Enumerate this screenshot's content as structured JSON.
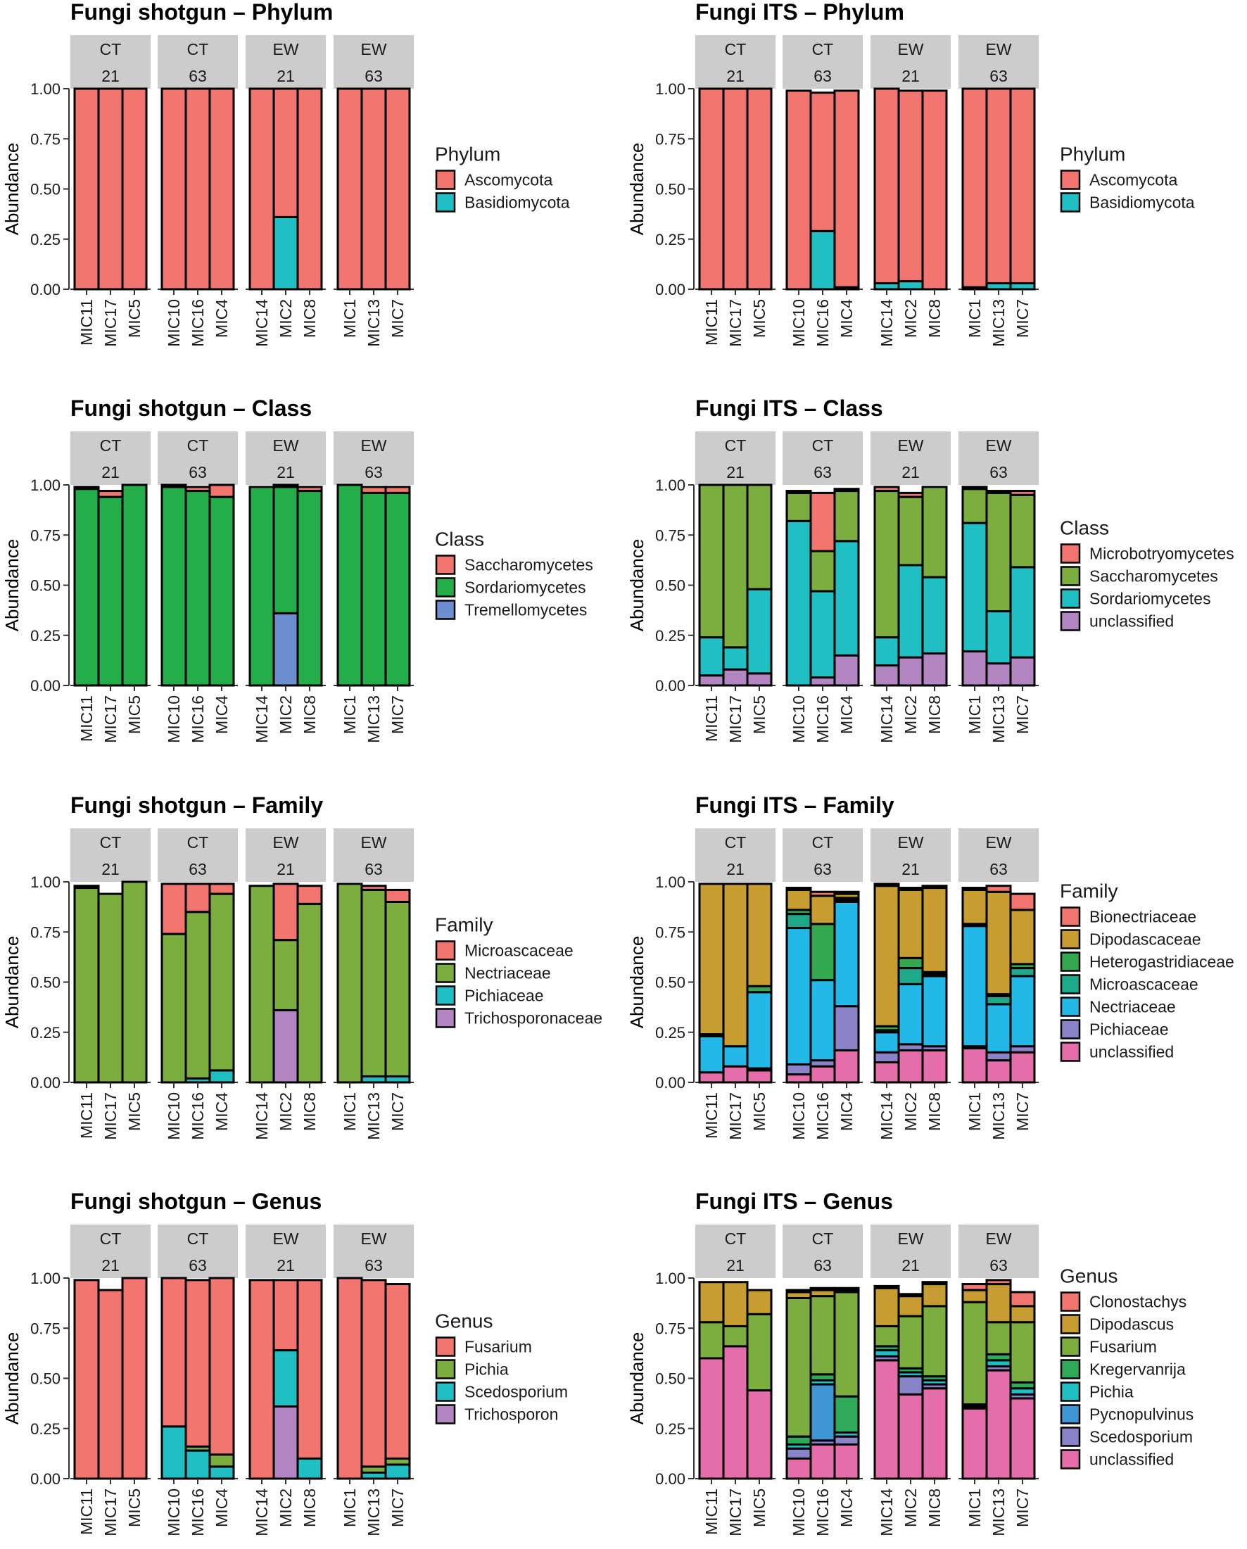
{
  "figure": {
    "facet_rows": [
      "CT",
      "CT",
      "EW",
      "EW"
    ],
    "facet_cols": [
      "21",
      "63",
      "21",
      "63"
    ],
    "groups": [
      [
        "MIC11",
        "MIC17",
        "MIC5"
      ],
      [
        "MIC10",
        "MIC16",
        "MIC4"
      ],
      [
        "MIC14",
        "MIC2",
        "MIC8"
      ],
      [
        "MIC1",
        "MIC13",
        "MIC7"
      ]
    ],
    "y_label": "Abundance",
    "y_ticks": [
      "0.00",
      "0.25",
      "0.50",
      "0.75",
      "1.00"
    ]
  },
  "chart_data": [
    {
      "type": "bar",
      "stacked": true,
      "title": "Fungi shotgun – Phylum",
      "ylabel": "Abundance",
      "ylim": [
        0,
        1
      ],
      "legend_title": "Phylum",
      "categories": [
        "MIC11",
        "MIC17",
        "MIC5",
        "MIC10",
        "MIC16",
        "MIC4",
        "MIC14",
        "MIC2",
        "MIC8",
        "MIC1",
        "MIC13",
        "MIC7"
      ],
      "series": [
        {
          "name": "Basidiomycota",
          "color": "#1fbfc4",
          "values": [
            0,
            0,
            0,
            0,
            0,
            0,
            0,
            0.36,
            0,
            0,
            0,
            0
          ]
        },
        {
          "name": "Ascomycota",
          "color": "#f2756f",
          "values": [
            1,
            1,
            1,
            1,
            1,
            1,
            1,
            0.64,
            1,
            1,
            1,
            1
          ]
        }
      ],
      "legend": [
        "Ascomycota",
        "Basidiomycota"
      ]
    },
    {
      "type": "bar",
      "stacked": true,
      "title": "Fungi ITS – Phylum",
      "ylabel": "Abundance",
      "ylim": [
        0,
        1
      ],
      "legend_title": "Phylum",
      "categories": [
        "MIC11",
        "MIC17",
        "MIC5",
        "MIC10",
        "MIC16",
        "MIC4",
        "MIC14",
        "MIC2",
        "MIC8",
        "MIC1",
        "MIC13",
        "MIC7"
      ],
      "series": [
        {
          "name": "Basidiomycota",
          "color": "#1fbfc4",
          "values": [
            0,
            0,
            0,
            0,
            0.29,
            0.01,
            0.03,
            0.04,
            0,
            0.01,
            0.03,
            0.03
          ]
        },
        {
          "name": "Ascomycota",
          "color": "#f2756f",
          "values": [
            1,
            1,
            1,
            0.99,
            0.69,
            0.98,
            0.97,
            0.95,
            0.99,
            0.99,
            0.97,
            0.97
          ]
        }
      ],
      "legend": [
        "Ascomycota",
        "Basidiomycota"
      ]
    },
    {
      "type": "bar",
      "stacked": true,
      "title": "Fungi shotgun – Class",
      "ylabel": "Abundance",
      "ylim": [
        0,
        1
      ],
      "legend_title": "Class",
      "categories": [
        "MIC11",
        "MIC17",
        "MIC5",
        "MIC10",
        "MIC16",
        "MIC4",
        "MIC14",
        "MIC2",
        "MIC8",
        "MIC1",
        "MIC13",
        "MIC7"
      ],
      "series": [
        {
          "name": "Tremellomycetes",
          "color": "#6d8fd0",
          "values": [
            0,
            0,
            0,
            0,
            0,
            0,
            0,
            0.36,
            0,
            0,
            0,
            0
          ]
        },
        {
          "name": "Sordariomycetes",
          "color": "#24ae4a",
          "values": [
            0.98,
            0.94,
            1,
            0.99,
            0.97,
            0.94,
            0.99,
            0.63,
            0.97,
            1,
            0.96,
            0.96
          ]
        },
        {
          "name": "Saccharomycetes",
          "color": "#f2756f",
          "values": [
            0.01,
            0.03,
            0,
            0.01,
            0.02,
            0.06,
            0,
            0.01,
            0.02,
            0,
            0.03,
            0.03
          ]
        }
      ],
      "legend": [
        "Saccharomycetes",
        "Sordariomycetes",
        "Tremellomycetes"
      ]
    },
    {
      "type": "bar",
      "stacked": true,
      "title": "Fungi ITS – Class",
      "ylabel": "Abundance",
      "ylim": [
        0,
        1
      ],
      "legend_title": "Class",
      "categories": [
        "MIC11",
        "MIC17",
        "MIC5",
        "MIC10",
        "MIC16",
        "MIC4",
        "MIC14",
        "MIC2",
        "MIC8",
        "MIC1",
        "MIC13",
        "MIC7"
      ],
      "series": [
        {
          "name": "unclassified",
          "color": "#b386c2",
          "values": [
            0.05,
            0.08,
            0.06,
            0,
            0.04,
            0.15,
            0.1,
            0.14,
            0.16,
            0.17,
            0.11,
            0.14
          ]
        },
        {
          "name": "Sordariomycetes",
          "color": "#1fbfc4",
          "values": [
            0.19,
            0.11,
            0.42,
            0.82,
            0.43,
            0.57,
            0.14,
            0.46,
            0.38,
            0.64,
            0.26,
            0.45
          ]
        },
        {
          "name": "Saccharomycetes",
          "color": "#7cae3f",
          "values": [
            0.76,
            0.81,
            0.52,
            0.14,
            0.2,
            0.25,
            0.73,
            0.34,
            0.45,
            0.17,
            0.59,
            0.36
          ]
        },
        {
          "name": "Microbotryomycetes",
          "color": "#f2756f",
          "values": [
            0,
            0,
            0,
            0.01,
            0.29,
            0.01,
            0.02,
            0.02,
            0,
            0.01,
            0.01,
            0.02
          ]
        }
      ],
      "legend": [
        "Microbotryomycetes",
        "Saccharomycetes",
        "Sordariomycetes",
        "unclassified"
      ]
    },
    {
      "type": "bar",
      "stacked": true,
      "title": "Fungi shotgun – Family",
      "ylabel": "Abundance",
      "ylim": [
        0,
        1
      ],
      "legend_title": "Family",
      "categories": [
        "MIC11",
        "MIC17",
        "MIC5",
        "MIC10",
        "MIC16",
        "MIC4",
        "MIC14",
        "MIC2",
        "MIC8",
        "MIC1",
        "MIC13",
        "MIC7"
      ],
      "series": [
        {
          "name": "Trichosporonaceae",
          "color": "#b386c2",
          "values": [
            0,
            0,
            0,
            0,
            0,
            0,
            0,
            0.36,
            0,
            0,
            0,
            0
          ]
        },
        {
          "name": "Pichiaceae",
          "color": "#1fbfc4",
          "values": [
            0,
            0,
            0,
            0,
            0.02,
            0.06,
            0,
            0,
            0,
            0,
            0.03,
            0.03
          ]
        },
        {
          "name": "Nectriaceae",
          "color": "#7cae3f",
          "values": [
            0.97,
            0.94,
            1,
            0.74,
            0.83,
            0.88,
            0.98,
            0.35,
            0.89,
            0.99,
            0.93,
            0.87
          ]
        },
        {
          "name": "Microascaceae",
          "color": "#f2756f",
          "values": [
            0.01,
            0,
            0,
            0.25,
            0.14,
            0.05,
            0,
            0.28,
            0.09,
            0,
            0.02,
            0.06
          ]
        }
      ],
      "legend": [
        "Microascaceae",
        "Nectriaceae",
        "Pichiaceae",
        "Trichosporonaceae"
      ]
    },
    {
      "type": "bar",
      "stacked": true,
      "title": "Fungi ITS – Family",
      "ylabel": "Abundance",
      "ylim": [
        0,
        1
      ],
      "legend_title": "Family",
      "categories": [
        "MIC11",
        "MIC17",
        "MIC5",
        "MIC10",
        "MIC16",
        "MIC4",
        "MIC14",
        "MIC2",
        "MIC8",
        "MIC1",
        "MIC13",
        "MIC7"
      ],
      "series": [
        {
          "name": "unclassified",
          "color": "#e56da9",
          "values": [
            0.05,
            0.08,
            0.06,
            0.04,
            0.08,
            0.16,
            0.1,
            0.16,
            0.16,
            0.17,
            0.11,
            0.15
          ]
        },
        {
          "name": "Pichiaceae",
          "color": "#8b83c9",
          "values": [
            0,
            0,
            0.01,
            0.05,
            0.03,
            0.22,
            0.05,
            0.03,
            0.02,
            0.01,
            0.04,
            0.03
          ]
        },
        {
          "name": "Nectriaceae",
          "color": "#22b8e8",
          "values": [
            0.18,
            0.1,
            0.38,
            0.68,
            0.4,
            0.52,
            0.1,
            0.3,
            0.35,
            0.6,
            0.24,
            0.35
          ]
        },
        {
          "name": "Microascaceae",
          "color": "#1ea98a",
          "values": [
            0,
            0,
            0,
            0.07,
            0,
            0.01,
            0.01,
            0.08,
            0.01,
            0,
            0.04,
            0.04
          ]
        },
        {
          "name": "Heterogastridiaceae",
          "color": "#33a84e",
          "values": [
            0.01,
            0,
            0.03,
            0.02,
            0.28,
            0.01,
            0.02,
            0.05,
            0.01,
            0.01,
            0.01,
            0.02
          ]
        },
        {
          "name": "Dipodascaceae",
          "color": "#c79c30",
          "values": [
            0.75,
            0.81,
            0.51,
            0.1,
            0.14,
            0.02,
            0.7,
            0.34,
            0.42,
            0.17,
            0.51,
            0.27
          ]
        },
        {
          "name": "Bionectriaceae",
          "color": "#f2756f",
          "values": [
            0,
            0,
            0,
            0.01,
            0.02,
            0.01,
            0.01,
            0.01,
            0.01,
            0.01,
            0.03,
            0.08
          ]
        }
      ],
      "legend": [
        "Bionectriaceae",
        "Dipodascaceae",
        "Heterogastridiaceae",
        "Microascaceae",
        "Nectriaceae",
        "Pichiaceae",
        "unclassified"
      ]
    },
    {
      "type": "bar",
      "stacked": true,
      "title": "Fungi shotgun – Genus",
      "ylabel": "Abundance",
      "ylim": [
        0,
        1
      ],
      "legend_title": "Genus",
      "categories": [
        "MIC11",
        "MIC17",
        "MIC5",
        "MIC10",
        "MIC16",
        "MIC4",
        "MIC14",
        "MIC2",
        "MIC8",
        "MIC1",
        "MIC13",
        "MIC7"
      ],
      "series": [
        {
          "name": "Trichosporon",
          "color": "#b386c2",
          "values": [
            0,
            0,
            0,
            0,
            0,
            0,
            0,
            0.36,
            0,
            0,
            0,
            0
          ]
        },
        {
          "name": "Scedosporium",
          "color": "#1fbfc4",
          "values": [
            0,
            0,
            0,
            0.26,
            0.14,
            0.06,
            0,
            0.28,
            0.1,
            0,
            0.03,
            0.07
          ]
        },
        {
          "name": "Pichia",
          "color": "#7cae3f",
          "values": [
            0,
            0,
            0,
            0,
            0.02,
            0.06,
            0,
            0,
            0,
            0,
            0.03,
            0.03
          ]
        },
        {
          "name": "Fusarium",
          "color": "#f2756f",
          "values": [
            0.99,
            0.94,
            1,
            0.74,
            0.83,
            0.88,
            0.99,
            0.35,
            0.89,
            1,
            0.93,
            0.87
          ]
        }
      ],
      "legend": [
        "Fusarium",
        "Pichia",
        "Scedosporium",
        "Trichosporon"
      ]
    },
    {
      "type": "bar",
      "stacked": true,
      "title": "Fungi ITS – Genus",
      "ylabel": "Abundance",
      "ylim": [
        0,
        1
      ],
      "legend_title": "Genus",
      "categories": [
        "MIC11",
        "MIC17",
        "MIC5",
        "MIC10",
        "MIC16",
        "MIC4",
        "MIC14",
        "MIC2",
        "MIC8",
        "MIC1",
        "MIC13",
        "MIC7"
      ],
      "series": [
        {
          "name": "unclassified",
          "color": "#e56da9",
          "values": [
            0.6,
            0.66,
            0.44,
            0.1,
            0.17,
            0.17,
            0.59,
            0.42,
            0.45,
            0.35,
            0.54,
            0.4
          ]
        },
        {
          "name": "Scedosporium",
          "color": "#8b83c9",
          "values": [
            0,
            0,
            0,
            0.05,
            0.02,
            0.04,
            0.02,
            0.09,
            0.02,
            0.01,
            0.02,
            0.02
          ]
        },
        {
          "name": "Pycnopulvinus",
          "color": "#3f96d4",
          "values": [
            0,
            0,
            0,
            0,
            0.28,
            0,
            0,
            0,
            0,
            0,
            0,
            0
          ]
        },
        {
          "name": "Pichia",
          "color": "#1fbfc4",
          "values": [
            0,
            0,
            0,
            0.02,
            0.02,
            0.02,
            0.03,
            0.02,
            0.02,
            0,
            0.03,
            0.03
          ]
        },
        {
          "name": "Kregervanrija",
          "color": "#2fa95a",
          "values": [
            0,
            0,
            0,
            0.04,
            0.03,
            0.18,
            0.02,
            0.02,
            0.02,
            0.01,
            0.03,
            0.03
          ]
        },
        {
          "name": "Fusarium",
          "color": "#7cae3f",
          "values": [
            0.18,
            0.1,
            0.38,
            0.69,
            0.39,
            0.52,
            0.1,
            0.26,
            0.35,
            0.51,
            0.16,
            0.3
          ]
        },
        {
          "name": "Dipodascus",
          "color": "#c79c30",
          "values": [
            0.2,
            0.22,
            0.12,
            0.03,
            0.03,
            0.01,
            0.19,
            0.1,
            0.11,
            0.06,
            0.19,
            0.08
          ]
        },
        {
          "name": "Clonostachys",
          "color": "#f2756f",
          "values": [
            0,
            0,
            0,
            0.01,
            0.01,
            0.01,
            0.01,
            0.01,
            0.01,
            0.03,
            0.02,
            0.07
          ]
        }
      ],
      "legend": [
        "Clonostachys",
        "Dipodascus",
        "Fusarium",
        "Kregervanrija",
        "Pichia",
        "Pycnopulvinus",
        "Scedosporium",
        "unclassified"
      ]
    }
  ]
}
